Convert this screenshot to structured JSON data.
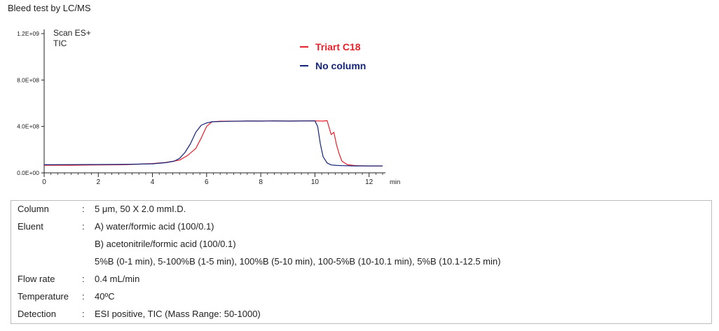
{
  "page_title": "Bleed test by LC/MS",
  "chart_data": {
    "type": "line",
    "annotation": [
      "Scan ES+",
      "TIC"
    ],
    "x_unit_label": "min",
    "xlim": [
      0,
      12.5
    ],
    "ylim": [
      0,
      1200000000
    ],
    "x_ticks": [
      0,
      2,
      4,
      6,
      8,
      10,
      12
    ],
    "x_tick_labels": [
      "0",
      "2",
      "4",
      "6",
      "8",
      "10",
      "12"
    ],
    "y_ticks": [
      0,
      400000000,
      800000000,
      1200000000
    ],
    "y_tick_labels": [
      "0.0E+00",
      "4.0E+08",
      "8.0E+08",
      "1.2E+09"
    ],
    "legend_position": "top-center",
    "series": [
      {
        "name": "Triart C18",
        "color": "#e8212b",
        "x": [
          0,
          1,
          2,
          3,
          4,
          4.5,
          5.0,
          5.3,
          5.6,
          5.8,
          6.0,
          6.2,
          6.5,
          7,
          7.5,
          8,
          8.5,
          9,
          9.5,
          10.0,
          10.3,
          10.45,
          10.6,
          10.7,
          10.8,
          10.9,
          11.0,
          11.2,
          11.5,
          12,
          12.5
        ],
        "y": [
          65000000,
          66000000,
          68000000,
          70000000,
          80000000,
          90000000,
          110000000,
          150000000,
          210000000,
          300000000,
          400000000,
          440000000,
          445000000,
          445000000,
          447000000,
          446000000,
          448000000,
          446000000,
          447000000,
          448000000,
          446000000,
          450000000,
          330000000,
          350000000,
          240000000,
          160000000,
          100000000,
          70000000,
          62000000,
          60000000,
          60000000
        ]
      },
      {
        "name": "No column",
        "color": "#14247a",
        "x": [
          0,
          1,
          2,
          3,
          4,
          4.5,
          4.8,
          5.0,
          5.2,
          5.4,
          5.6,
          5.8,
          6.0,
          6.2,
          6.5,
          7,
          7.5,
          8,
          8.5,
          9,
          9.5,
          10.0,
          10.1,
          10.2,
          10.3,
          10.45,
          10.6,
          10.8,
          11.0,
          11.5,
          12,
          12.5
        ],
        "y": [
          70000000,
          71000000,
          72000000,
          73000000,
          78000000,
          88000000,
          100000000,
          125000000,
          175000000,
          250000000,
          350000000,
          410000000,
          430000000,
          440000000,
          442000000,
          445000000,
          446000000,
          446000000,
          447000000,
          446000000,
          447000000,
          448000000,
          400000000,
          250000000,
          140000000,
          85000000,
          68000000,
          64000000,
          62000000,
          60000000,
          60000000,
          60000000
        ]
      }
    ]
  },
  "conditions": [
    {
      "label": "Column",
      "value": "5 μm, 50 X 2.0 mmI.D."
    },
    {
      "label": "Eluent",
      "value": "A) water/formic acid (100/0.1)"
    },
    {
      "label": "",
      "value": "B) acetonitrile/formic acid (100/0.1)"
    },
    {
      "label": "",
      "value": "5%B (0-1 min), 5-100%B (1-5 min), 100%B (5-10 min), 100-5%B (10-10.1 min), 5%B (10.1-12.5 min)"
    },
    {
      "label": "Flow rate",
      "value": "0.4 mL/min"
    },
    {
      "label": "Temperature",
      "value": "40ºC"
    },
    {
      "label": "Detection",
      "value": "ESI positive, TIC (Mass Range: 50-1000)"
    }
  ]
}
